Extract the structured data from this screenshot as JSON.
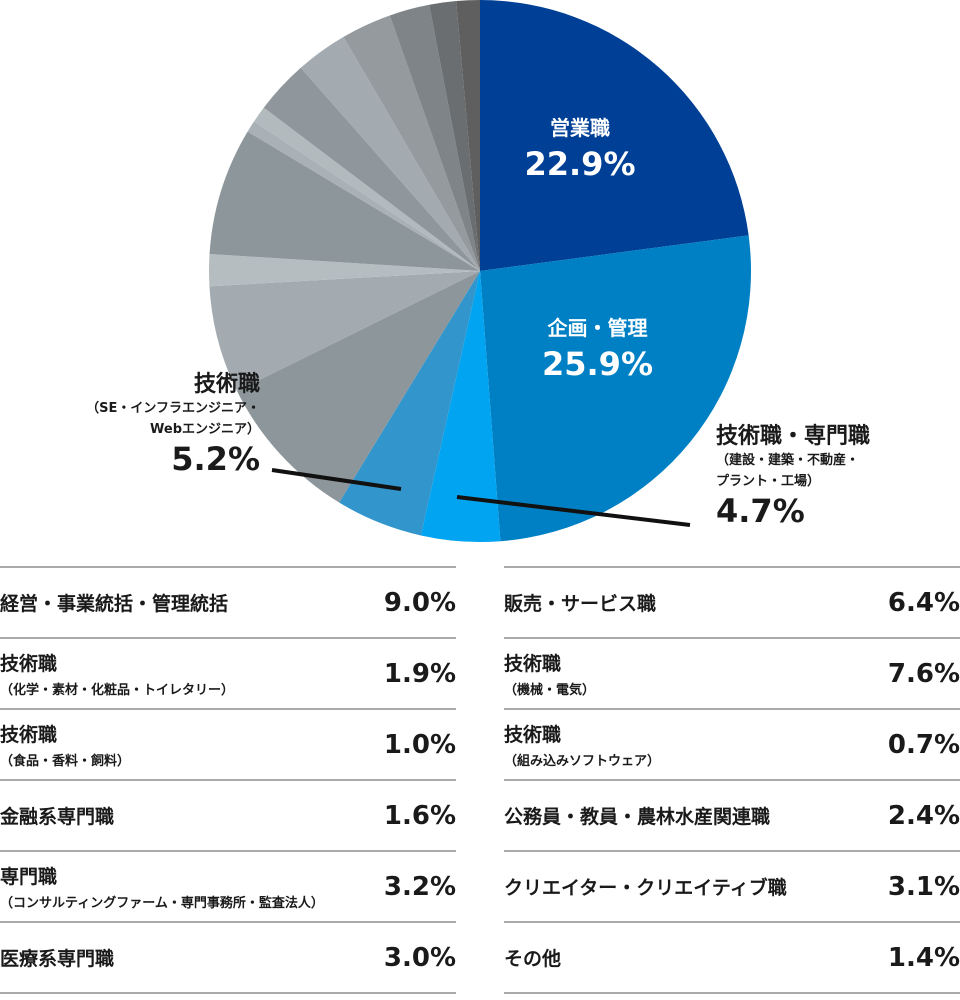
{
  "chart_data": {
    "type": "pie",
    "title": "",
    "slices": [
      {
        "label": "営業職",
        "value": 22.9,
        "color": "#003f96"
      },
      {
        "label": "企画・管理",
        "value": 25.9,
        "color": "#0080c4"
      },
      {
        "label": "技術職・専門職（建設・建築・不動産・プラント・工場）",
        "value": 4.7,
        "color": "#00a4f0"
      },
      {
        "label": "技術職（SE・インフラエンジニア・Webエンジニア）",
        "value": 5.2,
        "color": "#3296cc"
      },
      {
        "label": "経営・事業統括・管理統括",
        "value": 9.0,
        "color": "#8c969b"
      },
      {
        "label": "販売・サービス職",
        "value": 6.4,
        "color": "#a3abb1"
      },
      {
        "label": "技術職（化学・素材・化粧品・トイレタリー）",
        "value": 1.9,
        "color": "#b5bdc1"
      },
      {
        "label": "技術職（機械・電気）",
        "value": 7.6,
        "color": "#8c969b"
      },
      {
        "label": "技術職（組み込みソフトウェア）",
        "value": 0.7,
        "color": "#a9b1b6"
      },
      {
        "label": "技術職（食品・香料・飼料）",
        "value": 1.0,
        "color": "#b2babd"
      },
      {
        "label": "専門職（コンサルティングファーム・専門事務所・監査法人）",
        "value": 3.2,
        "color": "#8f979c"
      },
      {
        "label": "クリエイター・クリエイティブ職",
        "value": 3.1,
        "color": "#a3abb1"
      },
      {
        "label": "医療系専門職",
        "value": 3.0,
        "color": "#949a9e"
      },
      {
        "label": "公務員・教員・農林水産関連職",
        "value": 2.4,
        "color": "#7f8488"
      },
      {
        "label": "金融系専門職",
        "value": 1.6,
        "color": "#6b6e70"
      },
      {
        "label": "その他",
        "value": 1.4,
        "color": "#5f5f5f"
      }
    ]
  },
  "labels": {
    "sales": {
      "name": "営業職",
      "value": "22.9%"
    },
    "planning": {
      "name": "企画・管理",
      "value": "25.9%"
    },
    "tech_it": {
      "name": "技術職",
      "sub1": "（SE・インフラエンジニア・",
      "sub2": "Webエンジニア）",
      "value": "5.2%"
    },
    "tech_build": {
      "name": "技術職・専門職",
      "sub1": "（建設・建築・不動産・",
      "sub2": "プラント・工場）",
      "value": "4.7%"
    }
  },
  "table_left": [
    {
      "name": "経営・事業統括・管理統括",
      "sub": "",
      "pct": "9.0%"
    },
    {
      "name": "技術職",
      "sub": "（化学・素材・化粧品・トイレタリー）",
      "pct": "1.9%"
    },
    {
      "name": "技術職",
      "sub": "（食品・香料・飼料）",
      "pct": "1.0%"
    },
    {
      "name": "金融系専門職",
      "sub": "",
      "pct": "1.6%"
    },
    {
      "name": "専門職",
      "sub": "（コンサルティングファーム・専門事務所・監査法人）",
      "pct": "3.2%"
    },
    {
      "name": "医療系専門職",
      "sub": "",
      "pct": "3.0%"
    }
  ],
  "table_right": [
    {
      "name": "販売・サービス職",
      "sub": "",
      "pct": "6.4%"
    },
    {
      "name": "技術職",
      "sub": "（機械・電気）",
      "pct": "7.6%"
    },
    {
      "name": "技術職",
      "sub": "（組み込みソフトウェア）",
      "pct": "0.7%"
    },
    {
      "name": "公務員・教員・農林水産関連職",
      "sub": "",
      "pct": "2.4%"
    },
    {
      "name": "クリエイター・クリエイティブ職",
      "sub": "",
      "pct": "3.1%"
    },
    {
      "name": "その他",
      "sub": "",
      "pct": "1.4%"
    }
  ]
}
